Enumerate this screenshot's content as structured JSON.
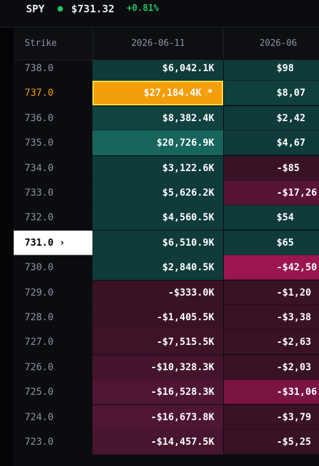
{
  "header": {
    "symbol": "SPY",
    "price": "$731.32",
    "change": "+0.81%"
  },
  "table": {
    "columns": [
      "Strike",
      "2026-06-11",
      "2026-06"
    ],
    "rows": [
      [
        "738.0",
        "$6,042.1K",
        "$98"
      ],
      [
        "737.0",
        "$27,184.4K *",
        "$8,07"
      ],
      [
        "736.0",
        "$8,382.4K",
        "$2,42"
      ],
      [
        "735.0",
        "$20,726.9K",
        "$4,67"
      ],
      [
        "734.0",
        "$3,122.6K",
        "-$85"
      ],
      [
        "733.0",
        "$5,626.2K",
        "-$17,26"
      ],
      [
        "732.0",
        "$4,560.5K",
        "$54"
      ],
      [
        "731.0 ›",
        "$6,510.9K",
        "$65"
      ],
      [
        "730.0",
        "$2,840.5K",
        "-$42,50"
      ],
      [
        "729.0",
        "-$333.0K",
        "-$1,20"
      ],
      [
        "728.0",
        "-$1,405.5K",
        "-$3,38"
      ],
      [
        "727.0",
        "-$7,515.5K",
        "-$2,63"
      ],
      [
        "726.0",
        "-$10,328.3K",
        "-$2,03"
      ],
      [
        "725.0",
        "-$16,528.3K",
        "-$31,06"
      ],
      [
        "724.0",
        "-$16,673.8K",
        "-$3,79"
      ],
      [
        "723.0",
        "-$14,457.5K",
        "-$5,25"
      ]
    ]
  }
}
